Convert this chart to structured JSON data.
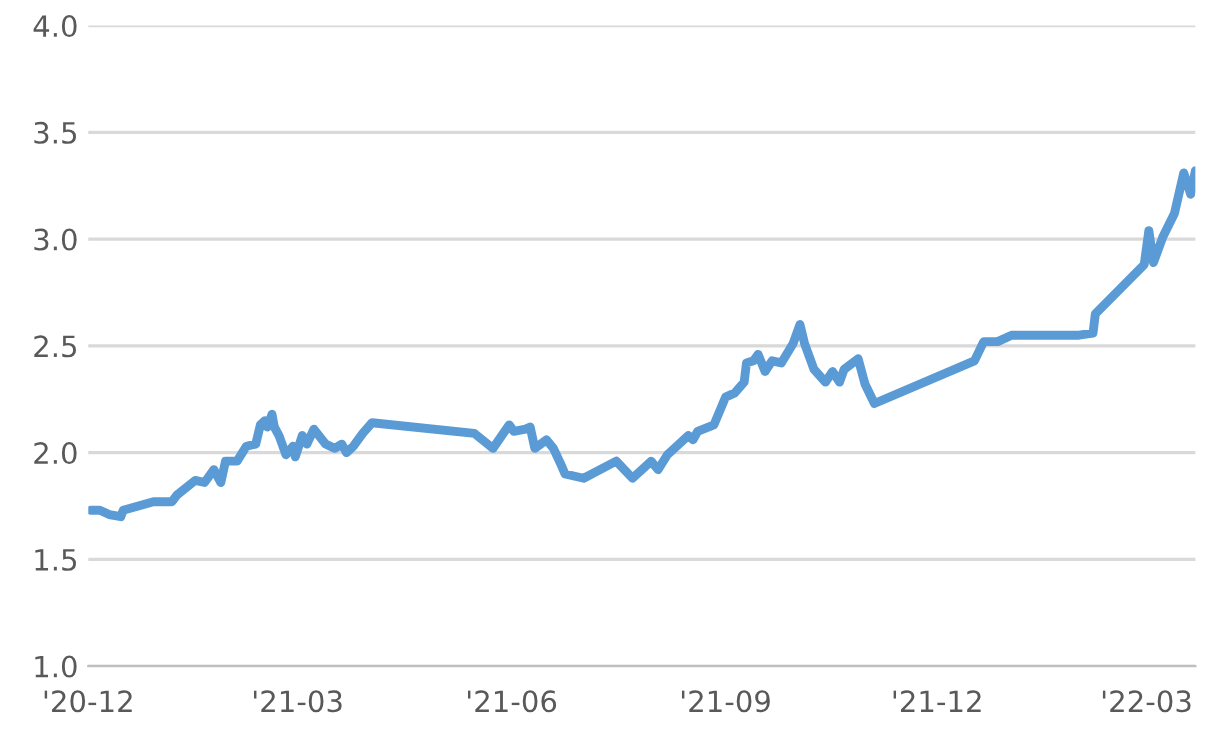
{
  "chart_data": {
    "type": "line",
    "grid": "y",
    "marker": "none",
    "line_style": "solid",
    "xlim": [
      "2020-12-01",
      "2022-03-22"
    ],
    "xticks": [
      {
        "value": "2020-12-01",
        "label": "'20-12"
      },
      {
        "value": "2021-03-01",
        "label": "'21-03"
      },
      {
        "value": "2021-06-01",
        "label": "'21-06"
      },
      {
        "value": "2021-09-01",
        "label": "'21-09"
      },
      {
        "value": "2021-12-01",
        "label": "'21-12"
      },
      {
        "value": "2022-03-01",
        "label": "'22-03"
      }
    ],
    "ylim": [
      1.0,
      4.0
    ],
    "yticks": [
      {
        "value": 1.0,
        "label": "1.0"
      },
      {
        "value": 1.5,
        "label": "1.5"
      },
      {
        "value": 2.0,
        "label": "2.0"
      },
      {
        "value": 2.5,
        "label": "2.5"
      },
      {
        "value": 3.0,
        "label": "3.0"
      },
      {
        "value": 3.5,
        "label": "3.5"
      },
      {
        "value": 4.0,
        "label": "4.0"
      }
    ],
    "series": [
      {
        "color": "#5b9bd5",
        "x": [
          "2020-12-02",
          "2020-12-06",
          "2020-12-10",
          "2020-12-15",
          "2020-12-16",
          "2020-12-29",
          "2021-01-06",
          "2021-01-08",
          "2021-01-16",
          "2021-01-20",
          "2021-01-24",
          "2021-01-27",
          "2021-01-29",
          "2021-02-03",
          "2021-02-07",
          "2021-02-11",
          "2021-02-13",
          "2021-02-15",
          "2021-02-16",
          "2021-02-18",
          "2021-02-19",
          "2021-02-21",
          "2021-02-24",
          "2021-02-27",
          "2021-02-28",
          "2021-03-03",
          "2021-03-05",
          "2021-03-08",
          "2021-03-13",
          "2021-03-17",
          "2021-03-20",
          "2021-03-22",
          "2021-03-25",
          "2021-03-29",
          "2021-04-02",
          "2021-05-16",
          "2021-05-24",
          "2021-05-31",
          "2021-06-02",
          "2021-06-07",
          "2021-06-09",
          "2021-06-11",
          "2021-06-16",
          "2021-06-19",
          "2021-06-22",
          "2021-06-24",
          "2021-07-02",
          "2021-07-16",
          "2021-07-23",
          "2021-07-31",
          "2021-08-03",
          "2021-08-07",
          "2021-08-11",
          "2021-08-16",
          "2021-08-18",
          "2021-08-20",
          "2021-08-27",
          "2021-09-01",
          "2021-09-05",
          "2021-09-09",
          "2021-09-10",
          "2021-09-13",
          "2021-09-15",
          "2021-09-18",
          "2021-09-21",
          "2021-09-25",
          "2021-09-30",
          "2021-10-03",
          "2021-10-05",
          "2021-10-09",
          "2021-10-14",
          "2021-10-17",
          "2021-10-20",
          "2021-10-22",
          "2021-10-28",
          "2021-10-31",
          "2021-11-04",
          "2021-12-17",
          "2021-12-21",
          "2021-12-27",
          "2022-01-02",
          "2022-01-09",
          "2022-01-31",
          "2022-02-06",
          "2022-02-07",
          "2022-02-28",
          "2022-03-02",
          "2022-03-04",
          "2022-03-08",
          "2022-03-13",
          "2022-03-17",
          "2022-03-20",
          "2022-03-22"
        ],
        "values": [
          1.73,
          1.73,
          1.71,
          1.7,
          1.73,
          1.77,
          1.77,
          1.8,
          1.87,
          1.86,
          1.92,
          1.86,
          1.96,
          1.96,
          2.03,
          2.04,
          2.13,
          2.15,
          2.12,
          2.18,
          2.12,
          2.08,
          1.99,
          2.03,
          1.98,
          2.08,
          2.04,
          2.11,
          2.04,
          2.02,
          2.04,
          2.0,
          2.03,
          2.09,
          2.14,
          2.09,
          2.02,
          2.13,
          2.1,
          2.11,
          2.12,
          2.02,
          2.06,
          2.02,
          1.95,
          1.9,
          1.88,
          1.96,
          1.88,
          1.96,
          1.92,
          1.99,
          2.03,
          2.08,
          2.06,
          2.1,
          2.13,
          2.26,
          2.28,
          2.33,
          2.42,
          2.43,
          2.46,
          2.38,
          2.43,
          2.42,
          2.51,
          2.6,
          2.51,
          2.39,
          2.33,
          2.38,
          2.33,
          2.39,
          2.44,
          2.32,
          2.23,
          2.43,
          2.52,
          2.52,
          2.55,
          2.55,
          2.55,
          2.56,
          2.65,
          2.88,
          3.04,
          2.89,
          3.01,
          3.12,
          3.31,
          3.21,
          3.32
        ]
      }
    ]
  }
}
